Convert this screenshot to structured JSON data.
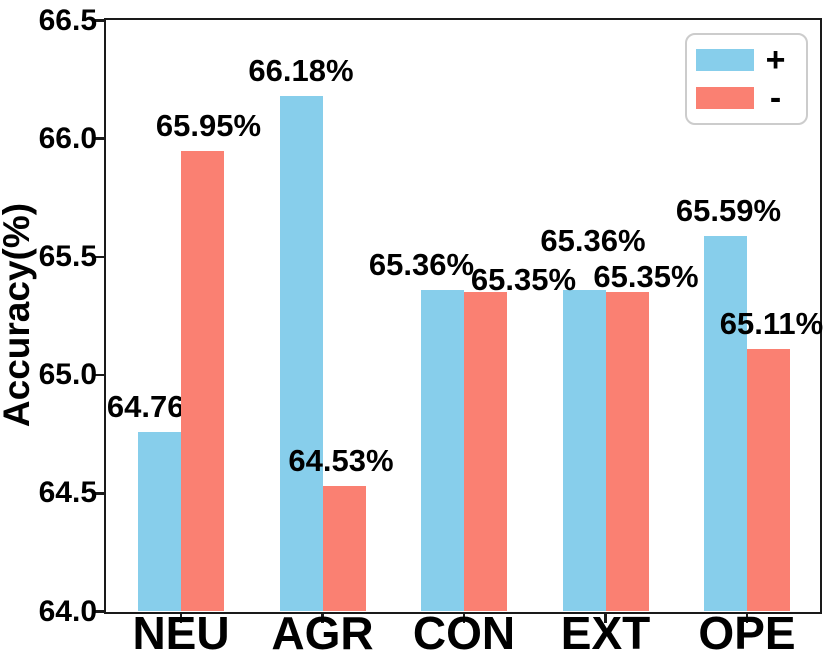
{
  "chart_data": {
    "type": "bar",
    "title": "",
    "xlabel": "",
    "ylabel": "Accuracy(%)",
    "categories": [
      "NEU",
      "AGR",
      "CON",
      "EXT",
      "OPE"
    ],
    "series": [
      {
        "name": "+",
        "color": "#87CEEB",
        "values": [
          64.76,
          66.18,
          65.36,
          65.36,
          65.59
        ],
        "labels": [
          "64.76%",
          "66.18%",
          "65.36%",
          "65.36%",
          "65.59%"
        ]
      },
      {
        "name": "-",
        "color": "#FA8072",
        "values": [
          65.95,
          64.53,
          65.35,
          65.35,
          65.11
        ],
        "labels": [
          "65.95%",
          "64.53%",
          "65.35%",
          "65.35%",
          "65.11%"
        ]
      }
    ],
    "ylim": [
      64.0,
      66.5
    ],
    "yticks": [
      64.0,
      64.5,
      65.0,
      65.5,
      66.0,
      66.5
    ],
    "ytick_labels": [
      "64.0",
      "64.5",
      "65.0",
      "65.5",
      "66.0",
      "66.5"
    ],
    "grid": false,
    "legend_position": "upper-right"
  },
  "colors": {
    "axis": "#1a1a1a",
    "background": "#ffffff",
    "text": "#000000",
    "legend_border": "#cccccc"
  }
}
